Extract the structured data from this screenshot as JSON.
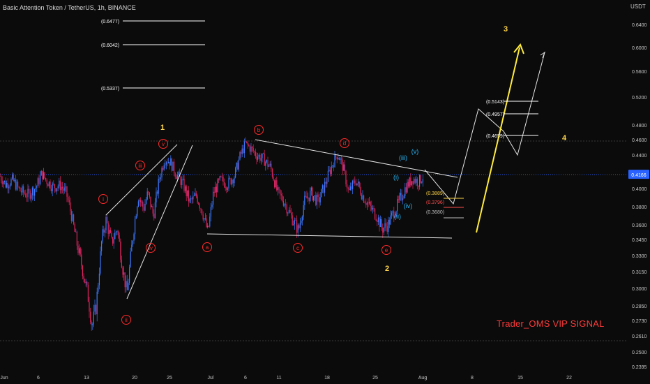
{
  "header": {
    "symbol": "Basic Attention Token / TetherUS, 1h, BINANCE",
    "unit": "USDT"
  },
  "watermark": "Trader_OMS VIP SIGNAL",
  "current_price": {
    "label": "0.4166",
    "value": 0.4166,
    "color": "#2962ff"
  },
  "colors": {
    "up": "#3b78ff",
    "down": "#e0245e",
    "wave_red": "#ff2a2a",
    "wave_blue": "#29b6f6",
    "wave_yellow": "#ffd54a",
    "projection": "#ffeb3b"
  },
  "chart_data": {
    "type": "candlestick",
    "x_ticks": [
      "Jun",
      "6",
      "13",
      "20",
      "25",
      "Jul",
      "6",
      "11",
      "18",
      "25",
      "Aug",
      "8",
      "15",
      "22"
    ],
    "y_ticks": [
      "0.6400",
      "0.6000",
      "0.5600",
      "0.5200",
      "0.4800",
      "0.4600",
      "0.4400",
      "0.4200",
      "0.4000",
      "0.3800",
      "0.3600",
      "0.3450",
      "0.3300",
      "0.3150",
      "0.3000",
      "0.2850",
      "0.2730",
      "0.2610",
      "0.2500",
      "0.2395"
    ],
    "price_path": [
      [
        0,
        0.415
      ],
      [
        8,
        0.405
      ],
      [
        18,
        0.41
      ],
      [
        28,
        0.398
      ],
      [
        40,
        0.393
      ],
      [
        52,
        0.402
      ],
      [
        60,
        0.418
      ],
      [
        66,
        0.41
      ],
      [
        76,
        0.402
      ],
      [
        86,
        0.404
      ],
      [
        95,
        0.395
      ],
      [
        102,
        0.372
      ],
      [
        110,
        0.342
      ],
      [
        118,
        0.318
      ],
      [
        126,
        0.294
      ],
      [
        132,
        0.268
      ],
      [
        138,
        0.285
      ],
      [
        146,
        0.345
      ],
      [
        152,
        0.365
      ],
      [
        160,
        0.342
      ],
      [
        168,
        0.356
      ],
      [
        176,
        0.318
      ],
      [
        182,
        0.295
      ],
      [
        190,
        0.345
      ],
      [
        198,
        0.392
      ],
      [
        206,
        0.378
      ],
      [
        212,
        0.395
      ],
      [
        220,
        0.37
      ],
      [
        228,
        0.41
      ],
      [
        236,
        0.436
      ],
      [
        244,
        0.432
      ],
      [
        252,
        0.418
      ],
      [
        262,
        0.406
      ],
      [
        272,
        0.385
      ],
      [
        282,
        0.392
      ],
      [
        290,
        0.375
      ],
      [
        298,
        0.352
      ],
      [
        306,
        0.395
      ],
      [
        316,
        0.41
      ],
      [
        326,
        0.405
      ],
      [
        336,
        0.415
      ],
      [
        344,
        0.438
      ],
      [
        352,
        0.455
      ],
      [
        360,
        0.448
      ],
      [
        368,
        0.44
      ],
      [
        378,
        0.435
      ],
      [
        388,
        0.425
      ],
      [
        398,
        0.395
      ],
      [
        408,
        0.385
      ],
      [
        418,
        0.368
      ],
      [
        428,
        0.354
      ],
      [
        436,
        0.385
      ],
      [
        446,
        0.395
      ],
      [
        456,
        0.385
      ],
      [
        466,
        0.405
      ],
      [
        476,
        0.428
      ],
      [
        484,
        0.442
      ],
      [
        492,
        0.425
      ],
      [
        500,
        0.395
      ],
      [
        510,
        0.41
      ],
      [
        520,
        0.392
      ],
      [
        530,
        0.38
      ],
      [
        540,
        0.37
      ],
      [
        548,
        0.356
      ],
      [
        556,
        0.36
      ],
      [
        564,
        0.373
      ],
      [
        572,
        0.385
      ],
      [
        582,
        0.402
      ],
      [
        592,
        0.412
      ],
      [
        600,
        0.408
      ],
      [
        608,
        0.416
      ]
    ],
    "horizontal_levels": [
      {
        "label": "(0.6477)",
        "price": 0.6477
      },
      {
        "label": "(0.6042)",
        "price": 0.6042
      },
      {
        "label": "(0.5337)",
        "price": 0.5337
      },
      {
        "label": "(0.5143)",
        "price": 0.5143
      },
      {
        "label": "(0.4957)",
        "price": 0.4957
      },
      {
        "label": "(0.4659)",
        "price": 0.4659
      },
      {
        "label": "(0.3889)",
        "price": 0.3889
      },
      {
        "label": "(0.3796)",
        "price": 0.3796
      },
      {
        "label": "(0.3680)",
        "price": 0.368
      }
    ],
    "wave_labels": {
      "major": [
        "1",
        "2",
        "3",
        "4"
      ],
      "impulse_red": [
        "i",
        "ii",
        "iii",
        "iv",
        "v"
      ],
      "triangle": [
        "a",
        "b",
        "c",
        "d",
        "e"
      ],
      "sub_blue": [
        "(i)",
        "(ii)",
        "(iii)",
        "(iv)",
        "(v)"
      ]
    }
  }
}
